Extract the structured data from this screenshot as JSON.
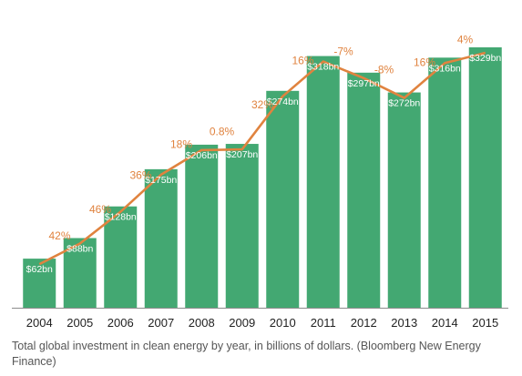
{
  "caption": "Total global investment in clean energy by year, in billions of dollars. (Bloomberg New Energy Finance)",
  "colors": {
    "bar": "#43a872",
    "line": "#e0833f",
    "growth_label": "#e0833f",
    "bar_label": "#ffffff",
    "axis": "#8c8c8c",
    "tick": "#222222"
  },
  "chart_data": {
    "type": "bar",
    "title": "",
    "xlabel": "",
    "ylabel": "",
    "ylim": [
      0,
      350
    ],
    "grid": false,
    "categories": [
      "2004",
      "2005",
      "2006",
      "2007",
      "2008",
      "2009",
      "2010",
      "2011",
      "2012",
      "2013",
      "2014",
      "2015"
    ],
    "values": [
      62,
      88,
      128,
      175,
      206,
      207,
      274,
      318,
      297,
      272,
      316,
      329
    ],
    "value_labels": [
      "$62bn",
      "$88bn",
      "$128bn",
      "$175bn",
      "$206bn",
      "$207bn",
      "$274bn",
      "$318bn",
      "$297bn",
      "$272bn",
      "$316bn",
      "$329bn"
    ],
    "growth_labels": [
      "42%",
      "46%",
      "36%",
      "18%",
      "0.8%",
      "32%",
      "16%",
      "-7%",
      "-8%",
      "16%",
      "4%"
    ],
    "overlay": {
      "type": "line",
      "values": [
        62,
        88,
        128,
        175,
        206,
        207,
        274,
        318,
        297,
        272,
        316,
        329
      ]
    }
  }
}
